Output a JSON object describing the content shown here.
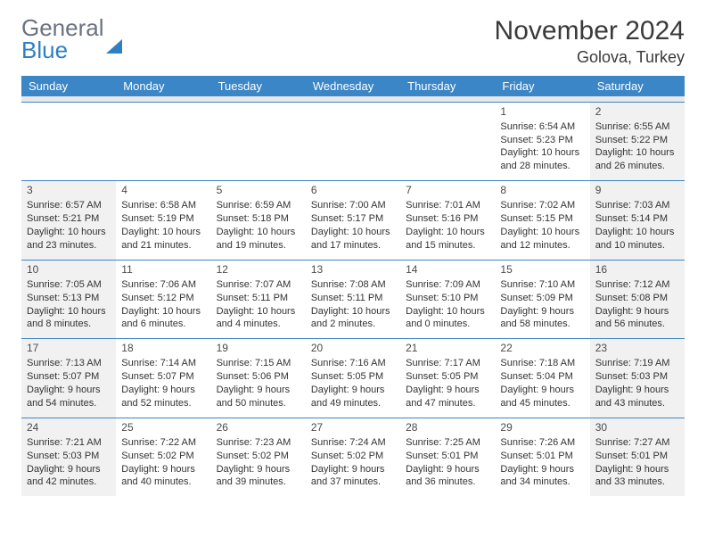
{
  "logo": {
    "general": "General",
    "blue": "Blue"
  },
  "title": "November 2024",
  "location": "Golova, Turkey",
  "colors": {
    "header_bg": "#3b86c6",
    "header_text": "#ffffff",
    "border": "#3b86c6",
    "shade": "#f1f1f1",
    "logo_blue": "#2f7fc3",
    "logo_gray": "#6b7280"
  },
  "dow": [
    "Sunday",
    "Monday",
    "Tuesday",
    "Wednesday",
    "Thursday",
    "Friday",
    "Saturday"
  ],
  "weeks": [
    [
      null,
      null,
      null,
      null,
      null,
      {
        "n": "1",
        "sr": "Sunrise: 6:54 AM",
        "ss": "Sunset: 5:23 PM",
        "dl1": "Daylight: 10 hours",
        "dl2": "and 28 minutes."
      },
      {
        "n": "2",
        "sr": "Sunrise: 6:55 AM",
        "ss": "Sunset: 5:22 PM",
        "dl1": "Daylight: 10 hours",
        "dl2": "and 26 minutes."
      }
    ],
    [
      {
        "n": "3",
        "sr": "Sunrise: 6:57 AM",
        "ss": "Sunset: 5:21 PM",
        "dl1": "Daylight: 10 hours",
        "dl2": "and 23 minutes."
      },
      {
        "n": "4",
        "sr": "Sunrise: 6:58 AM",
        "ss": "Sunset: 5:19 PM",
        "dl1": "Daylight: 10 hours",
        "dl2": "and 21 minutes."
      },
      {
        "n": "5",
        "sr": "Sunrise: 6:59 AM",
        "ss": "Sunset: 5:18 PM",
        "dl1": "Daylight: 10 hours",
        "dl2": "and 19 minutes."
      },
      {
        "n": "6",
        "sr": "Sunrise: 7:00 AM",
        "ss": "Sunset: 5:17 PM",
        "dl1": "Daylight: 10 hours",
        "dl2": "and 17 minutes."
      },
      {
        "n": "7",
        "sr": "Sunrise: 7:01 AM",
        "ss": "Sunset: 5:16 PM",
        "dl1": "Daylight: 10 hours",
        "dl2": "and 15 minutes."
      },
      {
        "n": "8",
        "sr": "Sunrise: 7:02 AM",
        "ss": "Sunset: 5:15 PM",
        "dl1": "Daylight: 10 hours",
        "dl2": "and 12 minutes."
      },
      {
        "n": "9",
        "sr": "Sunrise: 7:03 AM",
        "ss": "Sunset: 5:14 PM",
        "dl1": "Daylight: 10 hours",
        "dl2": "and 10 minutes."
      }
    ],
    [
      {
        "n": "10",
        "sr": "Sunrise: 7:05 AM",
        "ss": "Sunset: 5:13 PM",
        "dl1": "Daylight: 10 hours",
        "dl2": "and 8 minutes."
      },
      {
        "n": "11",
        "sr": "Sunrise: 7:06 AM",
        "ss": "Sunset: 5:12 PM",
        "dl1": "Daylight: 10 hours",
        "dl2": "and 6 minutes."
      },
      {
        "n": "12",
        "sr": "Sunrise: 7:07 AM",
        "ss": "Sunset: 5:11 PM",
        "dl1": "Daylight: 10 hours",
        "dl2": "and 4 minutes."
      },
      {
        "n": "13",
        "sr": "Sunrise: 7:08 AM",
        "ss": "Sunset: 5:11 PM",
        "dl1": "Daylight: 10 hours",
        "dl2": "and 2 minutes."
      },
      {
        "n": "14",
        "sr": "Sunrise: 7:09 AM",
        "ss": "Sunset: 5:10 PM",
        "dl1": "Daylight: 10 hours",
        "dl2": "and 0 minutes."
      },
      {
        "n": "15",
        "sr": "Sunrise: 7:10 AM",
        "ss": "Sunset: 5:09 PM",
        "dl1": "Daylight: 9 hours",
        "dl2": "and 58 minutes."
      },
      {
        "n": "16",
        "sr": "Sunrise: 7:12 AM",
        "ss": "Sunset: 5:08 PM",
        "dl1": "Daylight: 9 hours",
        "dl2": "and 56 minutes."
      }
    ],
    [
      {
        "n": "17",
        "sr": "Sunrise: 7:13 AM",
        "ss": "Sunset: 5:07 PM",
        "dl1": "Daylight: 9 hours",
        "dl2": "and 54 minutes."
      },
      {
        "n": "18",
        "sr": "Sunrise: 7:14 AM",
        "ss": "Sunset: 5:07 PM",
        "dl1": "Daylight: 9 hours",
        "dl2": "and 52 minutes."
      },
      {
        "n": "19",
        "sr": "Sunrise: 7:15 AM",
        "ss": "Sunset: 5:06 PM",
        "dl1": "Daylight: 9 hours",
        "dl2": "and 50 minutes."
      },
      {
        "n": "20",
        "sr": "Sunrise: 7:16 AM",
        "ss": "Sunset: 5:05 PM",
        "dl1": "Daylight: 9 hours",
        "dl2": "and 49 minutes."
      },
      {
        "n": "21",
        "sr": "Sunrise: 7:17 AM",
        "ss": "Sunset: 5:05 PM",
        "dl1": "Daylight: 9 hours",
        "dl2": "and 47 minutes."
      },
      {
        "n": "22",
        "sr": "Sunrise: 7:18 AM",
        "ss": "Sunset: 5:04 PM",
        "dl1": "Daylight: 9 hours",
        "dl2": "and 45 minutes."
      },
      {
        "n": "23",
        "sr": "Sunrise: 7:19 AM",
        "ss": "Sunset: 5:03 PM",
        "dl1": "Daylight: 9 hours",
        "dl2": "and 43 minutes."
      }
    ],
    [
      {
        "n": "24",
        "sr": "Sunrise: 7:21 AM",
        "ss": "Sunset: 5:03 PM",
        "dl1": "Daylight: 9 hours",
        "dl2": "and 42 minutes."
      },
      {
        "n": "25",
        "sr": "Sunrise: 7:22 AM",
        "ss": "Sunset: 5:02 PM",
        "dl1": "Daylight: 9 hours",
        "dl2": "and 40 minutes."
      },
      {
        "n": "26",
        "sr": "Sunrise: 7:23 AM",
        "ss": "Sunset: 5:02 PM",
        "dl1": "Daylight: 9 hours",
        "dl2": "and 39 minutes."
      },
      {
        "n": "27",
        "sr": "Sunrise: 7:24 AM",
        "ss": "Sunset: 5:02 PM",
        "dl1": "Daylight: 9 hours",
        "dl2": "and 37 minutes."
      },
      {
        "n": "28",
        "sr": "Sunrise: 7:25 AM",
        "ss": "Sunset: 5:01 PM",
        "dl1": "Daylight: 9 hours",
        "dl2": "and 36 minutes."
      },
      {
        "n": "29",
        "sr": "Sunrise: 7:26 AM",
        "ss": "Sunset: 5:01 PM",
        "dl1": "Daylight: 9 hours",
        "dl2": "and 34 minutes."
      },
      {
        "n": "30",
        "sr": "Sunrise: 7:27 AM",
        "ss": "Sunset: 5:01 PM",
        "dl1": "Daylight: 9 hours",
        "dl2": "and 33 minutes."
      }
    ]
  ]
}
